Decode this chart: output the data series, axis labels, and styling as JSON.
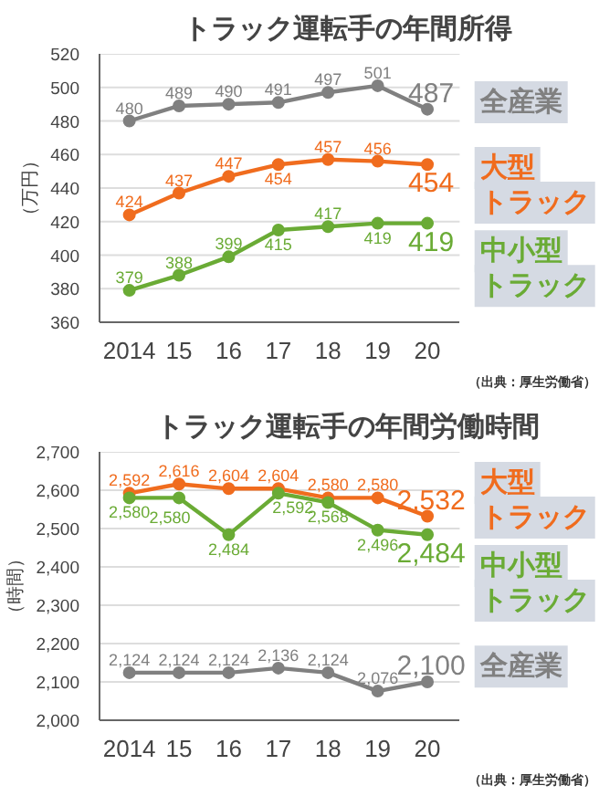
{
  "chart_data": [
    {
      "type": "line",
      "title": "トラック運転手の年間所得",
      "ylabel": "（万円）",
      "categories": [
        "2014",
        "15",
        "16",
        "17",
        "18",
        "19",
        "20"
      ],
      "ylim": [
        360,
        520
      ],
      "yticks": [
        360,
        380,
        400,
        420,
        440,
        460,
        480,
        500,
        520
      ],
      "grid": "y",
      "marker": "circle",
      "data_labels": true,
      "annotations": [
        "（出典：厚生労働省）"
      ],
      "series": [
        {
          "name": "全産業",
          "color": "#808080",
          "values": [
            480,
            489,
            490,
            491,
            497,
            501,
            487
          ]
        },
        {
          "name": "大型トラック",
          "color": "#f06c1e",
          "values": [
            424,
            437,
            447,
            454,
            457,
            456,
            454
          ]
        },
        {
          "name": "中小型トラック",
          "color": "#6aab35",
          "values": [
            379,
            388,
            399,
            415,
            417,
            419,
            419
          ]
        }
      ]
    },
    {
      "type": "line",
      "title": "トラック運転手の年間労働時間",
      "ylabel": "（時間）",
      "categories": [
        "2014",
        "15",
        "16",
        "17",
        "18",
        "19",
        "20"
      ],
      "ylim": [
        2000,
        2700
      ],
      "yticks": [
        {
          "value": 2000,
          "label": "2,000"
        },
        {
          "value": 2100,
          "label": "2,100"
        },
        {
          "value": 2200,
          "label": "2,200"
        },
        {
          "value": 2300,
          "label": "2,300"
        },
        {
          "value": 2400,
          "label": "2,400"
        },
        {
          "value": 2500,
          "label": "2,500"
        },
        {
          "value": 2600,
          "label": "2,600"
        },
        {
          "value": 2700,
          "label": "2,700"
        }
      ],
      "grid": "y",
      "marker": "circle",
      "annotations": [
        "（出典：厚生労働省）"
      ],
      "series": [
        {
          "name": "大型トラック",
          "color": "#f06c1e",
          "values": [
            2592,
            2616,
            2604,
            2604,
            2580,
            2580,
            2532
          ],
          "value_labels": [
            "2,592",
            "2,616",
            "2,604",
            "2,604",
            "2,580",
            "2,580",
            "2,532"
          ]
        },
        {
          "name": "中小型トラック",
          "color": "#6aab35",
          "values": [
            2580,
            2580,
            2484,
            2592,
            2568,
            2496,
            2484
          ],
          "value_labels": [
            "2,580",
            "2,580",
            "2,484",
            "2,592",
            "2,568",
            "2,496",
            "2,484"
          ]
        },
        {
          "name": "全産業",
          "color": "#808080",
          "values": [
            2124,
            2124,
            2124,
            2136,
            2124,
            2076,
            2100
          ],
          "value_labels": [
            "2,124",
            "2,124",
            "2,124",
            "2,136",
            "2,124",
            "2,076",
            "2,100"
          ]
        }
      ]
    }
  ]
}
